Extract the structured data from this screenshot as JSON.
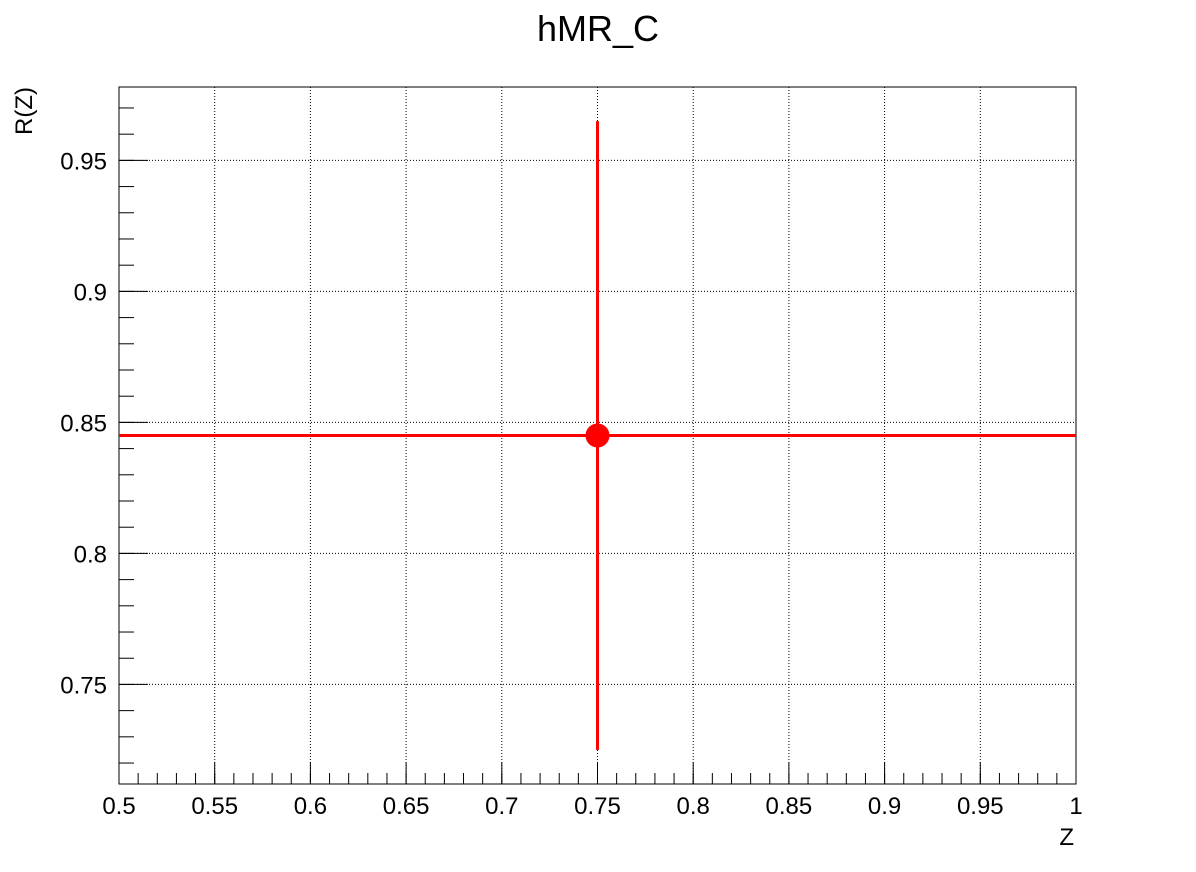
{
  "chart_data": {
    "type": "scatter",
    "title": "hMR_C",
    "xlabel": "Z",
    "ylabel": "R(Z)",
    "xlim": [
      0.5,
      1.0
    ],
    "ylim": [
      0.712,
      0.978
    ],
    "grid": true,
    "x_ticks": [
      0.5,
      0.55,
      0.6,
      0.65,
      0.7,
      0.75,
      0.8,
      0.85,
      0.9,
      0.95,
      1
    ],
    "x_tick_labels": [
      "0.5",
      "0.55",
      "0.6",
      "0.65",
      "0.7",
      "0.75",
      "0.8",
      "0.85",
      "0.9",
      "0.95",
      "1"
    ],
    "y_ticks": [
      0.75,
      0.8,
      0.85,
      0.9,
      0.95
    ],
    "y_tick_labels": [
      "0.75",
      "0.8",
      "0.85",
      "0.9",
      "0.95"
    ],
    "series": [
      {
        "color": "#ff0000",
        "points": [
          {
            "x": 0.75,
            "y": 0.845,
            "x_low": 0.5,
            "x_high": 1.0,
            "y_low": 0.725,
            "y_high": 0.965
          }
        ]
      }
    ]
  }
}
